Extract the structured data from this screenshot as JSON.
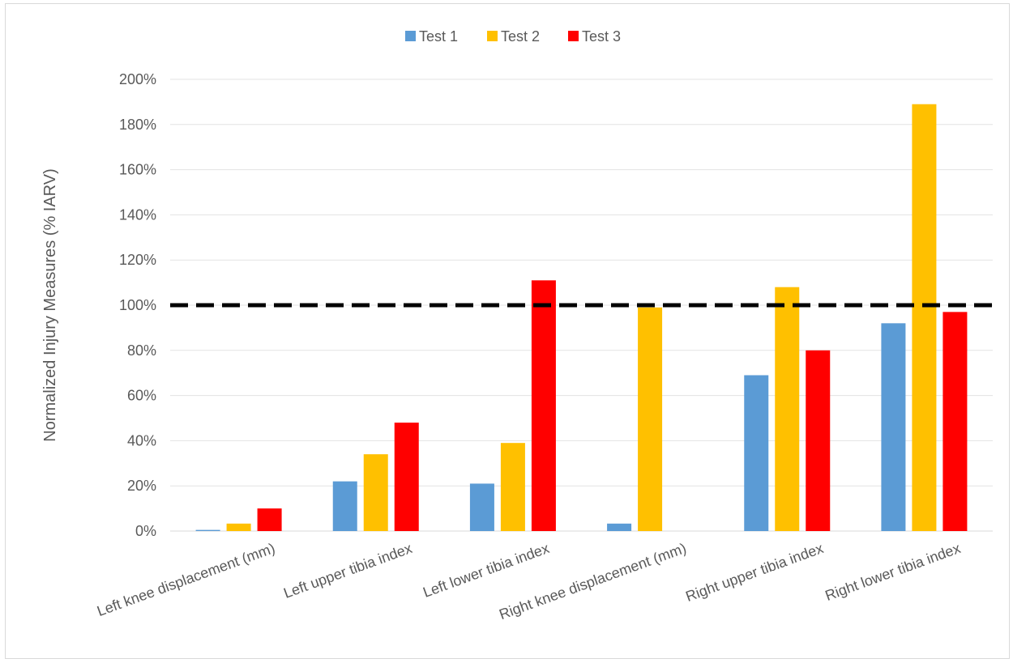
{
  "chart_data": {
    "type": "bar",
    "title": "",
    "xlabel": "",
    "ylabel": "Normalized Injury Measures (% IARV)",
    "ylim": [
      0,
      200
    ],
    "yticks": [
      "0%",
      "20%",
      "40%",
      "60%",
      "80%",
      "100%",
      "120%",
      "140%",
      "160%",
      "180%",
      "200%"
    ],
    "grid": true,
    "legend_position": "top",
    "categories": [
      "Left knee displacement (mm)",
      "Left upper tibia index",
      "Left lower tibia index",
      "Right knee displacement (mm)",
      "Right upper tibia index",
      "Right lower tibia index"
    ],
    "series": [
      {
        "name": "Test 1",
        "color": "#5b9bd5",
        "values": [
          0.5,
          22,
          21,
          3.3,
          69,
          92
        ]
      },
      {
        "name": "Test 2",
        "color": "#ffc000",
        "values": [
          3.3,
          34,
          39,
          99,
          108,
          189
        ]
      },
      {
        "name": "Test 3",
        "color": "#ff0000",
        "values": [
          10,
          48,
          111,
          null,
          80,
          97
        ]
      }
    ],
    "reference_line": {
      "value": 100,
      "style": "dashed",
      "color": "#000000"
    }
  }
}
